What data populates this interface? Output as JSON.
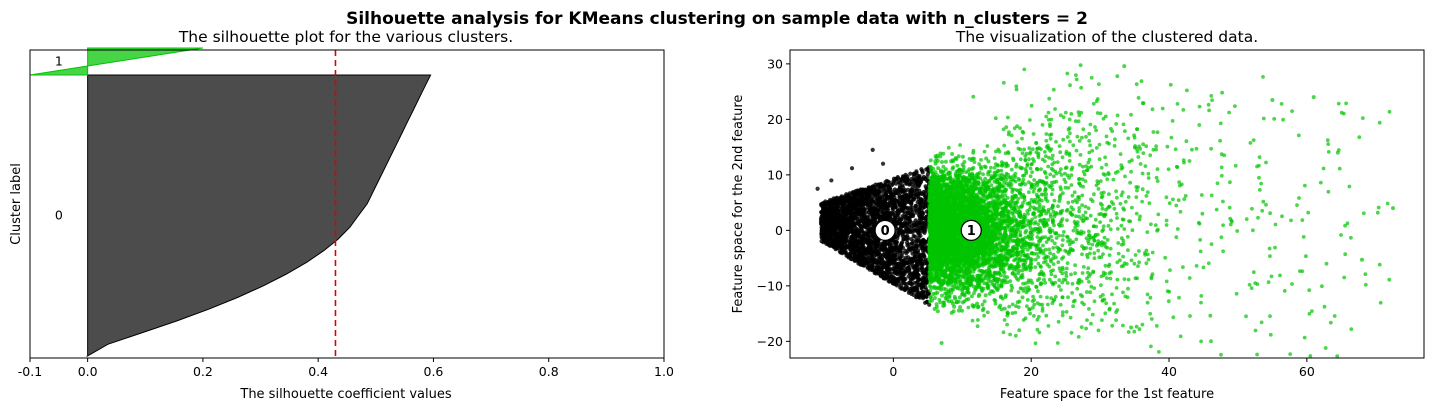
{
  "suptitle": "Silhouette analysis for KMeans clustering on sample data with n_clusters = 2",
  "colors": {
    "cluster0": "#000000",
    "cluster1": "#00c400",
    "threshold": "#e00000"
  },
  "chart_data": [
    {
      "type": "area",
      "title": "The silhouette plot for the various clusters.",
      "xlabel": "The silhouette coefficient values",
      "ylabel": "Cluster label",
      "xlim": [
        -0.1,
        1.0
      ],
      "xticks": [
        -0.1,
        0.0,
        0.2,
        0.4,
        0.6,
        0.8,
        1.0
      ],
      "xtick_labels": [
        "-0.1",
        "0.0",
        "0.2",
        "0.4",
        "0.6",
        "0.8",
        "1.0"
      ],
      "yticks": [],
      "average_silhouette_line": 0.43,
      "clusters": [
        {
          "label": "0",
          "color": "#000000",
          "silhouette_profile_max_to_min": [
            0.595,
            0.585,
            0.575,
            0.565,
            0.555,
            0.545,
            0.535,
            0.525,
            0.515,
            0.505,
            0.495,
            0.485,
            0.47,
            0.455,
            0.435,
            0.41,
            0.38,
            0.345,
            0.305,
            0.26,
            0.21,
            0.155,
            0.095,
            0.035,
            0.0
          ]
        },
        {
          "label": "1",
          "color": "#00c400",
          "silhouette_profile_max_to_min": [
            0.2,
            0.15,
            0.1,
            0.05,
            0.0,
            -0.05,
            -0.1
          ]
        }
      ]
    },
    {
      "type": "scatter",
      "title": "The visualization of the clustered data.",
      "xlabel": "Feature space for the 1st feature",
      "ylabel": "Feature space for the 2nd feature",
      "xlim": [
        -15,
        77
      ],
      "ylim": [
        -23,
        32.5
      ],
      "xticks": [
        0,
        20,
        40,
        60
      ],
      "xtick_labels": [
        "0",
        "20",
        "40",
        "60"
      ],
      "yticks": [
        -20,
        -10,
        0,
        10,
        20,
        30
      ],
      "ytick_labels": [
        "−20",
        "−10",
        "0",
        "10",
        "20",
        "30"
      ],
      "cluster_boundary_x": 5.2,
      "centers": [
        {
          "label": "0",
          "x": -1.2,
          "y": 0.0
        },
        {
          "label": "1",
          "x": 11.3,
          "y": 0.0
        }
      ],
      "cluster0_region": {
        "x": [
          -10.5,
          5.2
        ],
        "y": [
          -13,
          12
        ]
      },
      "cluster1_region": {
        "x": [
          5.2,
          72.5
        ],
        "y": [
          -20.5,
          30
        ]
      }
    }
  ]
}
